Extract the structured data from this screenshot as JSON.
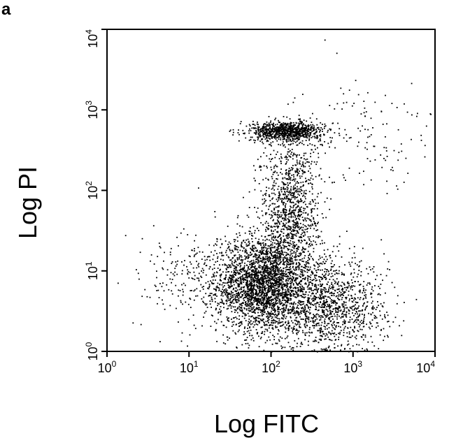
{
  "panel_label": "a",
  "chart_data": {
    "type": "scatter",
    "xlabel": "Log FITC",
    "ylabel": "Log PI",
    "x_scale": "log",
    "y_scale": "log",
    "xlim": [
      1,
      10000
    ],
    "ylim": [
      1,
      10000
    ],
    "x_ticks": [
      {
        "value": 1,
        "base": "10",
        "exp": "0"
      },
      {
        "value": 10,
        "base": "10",
        "exp": "1"
      },
      {
        "value": 100,
        "base": "10",
        "exp": "2"
      },
      {
        "value": 1000,
        "base": "10",
        "exp": "3"
      },
      {
        "value": 10000,
        "base": "10",
        "exp": "4"
      }
    ],
    "y_ticks": [
      {
        "value": 1,
        "base": "10",
        "exp": "0"
      },
      {
        "value": 10,
        "base": "10",
        "exp": "1"
      },
      {
        "value": 100,
        "base": "10",
        "exp": "2"
      },
      {
        "value": 1000,
        "base": "10",
        "exp": "3"
      },
      {
        "value": 10000,
        "base": "10",
        "exp": "4"
      }
    ],
    "grid": false,
    "colors": {
      "points": "#000000",
      "axes": "#000000"
    },
    "populations": [
      {
        "center": [
          80,
          7
        ],
        "spread": [
          0.28,
          0.3
        ],
        "count": 2600
      },
      {
        "center": [
          500,
          3.5
        ],
        "spread": [
          0.35,
          0.3
        ],
        "count": 1300
      },
      {
        "center": [
          150,
          550
        ],
        "spread": [
          0.22,
          0.06
        ],
        "count": 900
      },
      {
        "center": [
          170,
          60
        ],
        "spread": [
          0.18,
          0.45
        ],
        "count": 1100
      },
      {
        "center": [
          20,
          8
        ],
        "spread": [
          0.45,
          0.3
        ],
        "count": 350
      },
      {
        "center": [
          1500,
          500
        ],
        "spread": [
          0.45,
          0.35
        ],
        "count": 140
      }
    ]
  }
}
